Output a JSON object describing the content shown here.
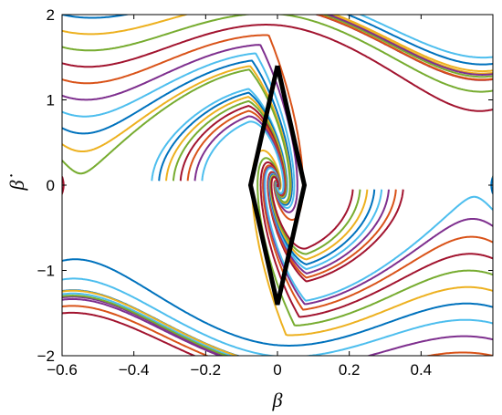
{
  "chart_data": {
    "type": "line",
    "title": "",
    "xlabel": "β",
    "ylabel": "β̇",
    "xlim": [
      -0.6,
      0.6
    ],
    "ylim": [
      -2,
      2
    ],
    "xticks": [
      -0.6,
      -0.4,
      -0.2,
      0,
      0.2,
      0.4
    ],
    "xtick_labels": [
      "−0.6",
      "−0.4",
      "−0.2",
      "0",
      "0.2",
      "0.4"
    ],
    "yticks": [
      -2,
      -1,
      0,
      1,
      2
    ],
    "ytick_labels": [
      "−2",
      "−1",
      "0",
      "1",
      "2"
    ],
    "grid": false,
    "legend": "none",
    "trajectory_colors": [
      "#0072BD",
      "#D95319",
      "#EDB120",
      "#7E2F8E",
      "#77AC30",
      "#4DBEEE",
      "#A2142F"
    ],
    "boundary": {
      "color": "#000000",
      "points": [
        [
          0.0,
          1.4
        ],
        [
          0.075,
          0.0
        ],
        [
          0.0,
          -1.4
        ],
        [
          -0.075,
          0.0
        ],
        [
          0.0,
          1.4
        ]
      ]
    },
    "series_note_free": true
  }
}
